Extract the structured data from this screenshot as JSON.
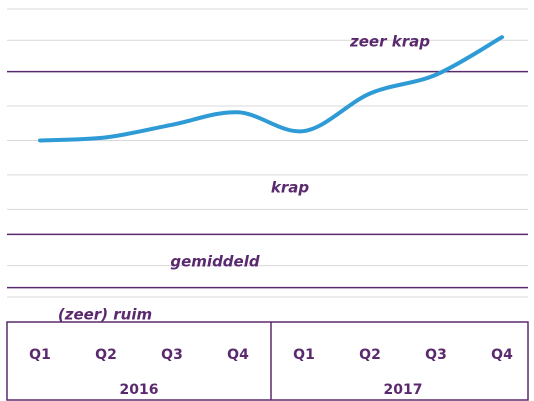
{
  "chart_data": {
    "type": "line",
    "categories": [
      "Q1",
      "Q2",
      "Q3",
      "Q4",
      "Q1",
      "Q2",
      "Q3",
      "Q4"
    ],
    "years": [
      "2016",
      "2017"
    ],
    "values": [
      58,
      59,
      63,
      67,
      61,
      73,
      79,
      91
    ],
    "color": "#2e9bd6",
    "ylim": [
      0,
      100
    ],
    "yticks": [
      8,
      18,
      36,
      47,
      58,
      69,
      90,
      100
    ],
    "grid": true,
    "thresholds": [
      80,
      28,
      11
    ],
    "threshold_color": "#5b2a6e",
    "annotations": [
      "zeer krap",
      "krap",
      "gemiddeld",
      "(zeer) ruim"
    ]
  }
}
